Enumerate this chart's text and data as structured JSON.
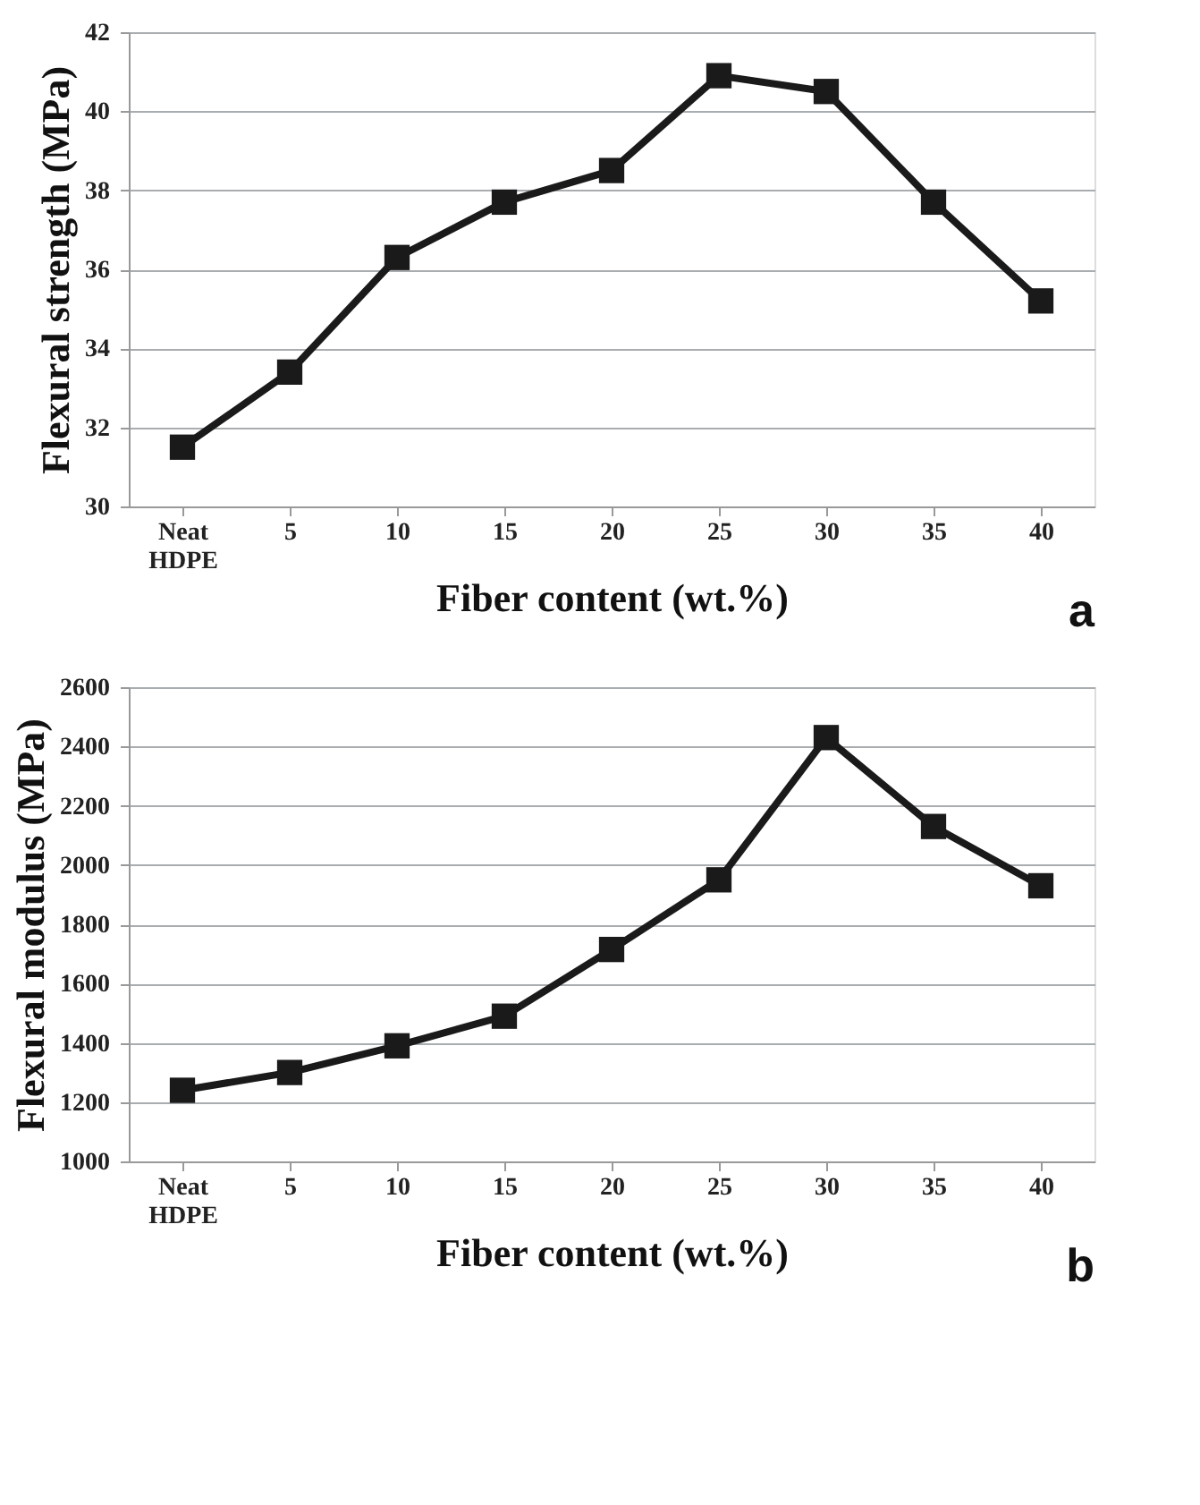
{
  "chart_data": [
    {
      "type": "line",
      "xlabel": "Fiber content (wt.%)",
      "ylabel": "Flexural strength (MPa)",
      "categories": [
        "Neat HDPE",
        "5",
        "10",
        "15",
        "20",
        "25",
        "30",
        "35",
        "40"
      ],
      "series": [
        {
          "color": "#1a1a1a",
          "values": [
            31.5,
            33.4,
            36.3,
            37.7,
            38.5,
            40.9,
            40.5,
            37.7,
            35.2
          ]
        }
      ],
      "ylim": [
        30,
        42
      ],
      "yticks": [
        30,
        32,
        34,
        36,
        38,
        40,
        42
      ],
      "grid": "y",
      "marker": "square",
      "line_style": "solid",
      "annotations": [
        "a"
      ]
    },
    {
      "type": "line",
      "xlabel": "Fiber content (wt.%)",
      "ylabel": "Flexural modulus (MPa)",
      "categories": [
        "Neat HDPE",
        "5",
        "10",
        "15",
        "20",
        "25",
        "30",
        "35",
        "40"
      ],
      "series": [
        {
          "color": "#1a1a1a",
          "values": [
            1240,
            1300,
            1390,
            1490,
            1715,
            1950,
            2430,
            2130,
            1930
          ]
        }
      ],
      "ylim": [
        1000,
        2600
      ],
      "yticks": [
        1000,
        1200,
        1400,
        1600,
        1800,
        2000,
        2200,
        2400,
        2600
      ],
      "grid": "y",
      "marker": "square",
      "line_style": "solid",
      "annotations": [
        "b"
      ]
    }
  ]
}
